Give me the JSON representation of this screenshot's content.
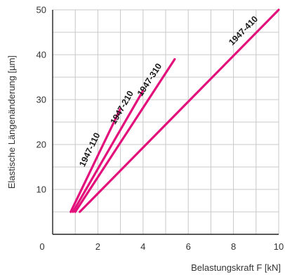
{
  "chart_data": {
    "type": "line",
    "title": "",
    "xlabel": "Belastungskraft F [kN]",
    "ylabel": "Elastische Längenänderung [µm]",
    "xlim": [
      0,
      10
    ],
    "ylim": [
      0,
      50
    ],
    "xticks": [
      0,
      2,
      4,
      6,
      8,
      10
    ],
    "yticks": [
      10,
      20,
      30,
      40,
      50
    ],
    "grid": true,
    "legend": "none",
    "line_color": "#e2117b",
    "series": [
      {
        "name": "1947-110",
        "x": [
          0.8,
          3.0
        ],
        "y": [
          5,
          28
        ]
      },
      {
        "name": "1947-210",
        "x": [
          0.9,
          4.0
        ],
        "y": [
          5,
          32
        ]
      },
      {
        "name": "1947-310",
        "x": [
          1.0,
          5.4
        ],
        "y": [
          5,
          39
        ]
      },
      {
        "name": "1947-410",
        "x": [
          1.2,
          10.0
        ],
        "y": [
          5,
          50
        ]
      }
    ]
  }
}
